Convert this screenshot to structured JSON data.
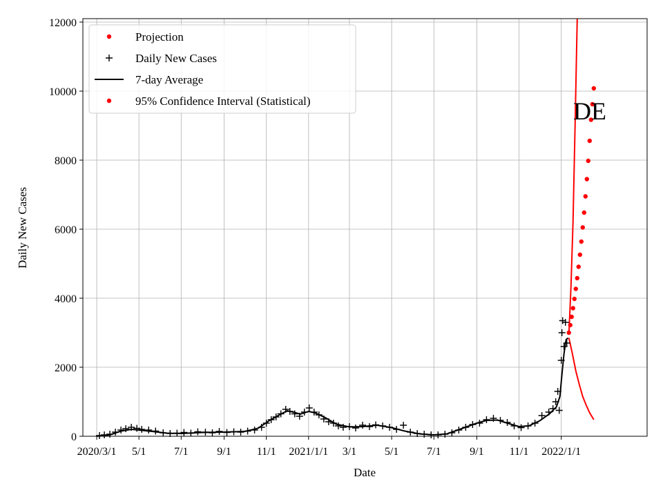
{
  "chart_data": {
    "type": "line",
    "xlabel": "Date",
    "ylabel": "Daily New Cases",
    "annotation": "DE",
    "ylim": [
      0,
      12100
    ],
    "xlim": [
      "2020-02-10",
      "2022-05-05"
    ],
    "grid": true,
    "legend_position": "top-left",
    "x_ticks": [
      {
        "date": "2020-03-01",
        "label": "2020/3/1"
      },
      {
        "date": "2020-05-01",
        "label": "5/1"
      },
      {
        "date": "2020-07-01",
        "label": "7/1"
      },
      {
        "date": "2020-09-01",
        "label": "9/1"
      },
      {
        "date": "2020-11-01",
        "label": "11/1"
      },
      {
        "date": "2021-01-01",
        "label": "2021/1/1"
      },
      {
        "date": "2021-03-01",
        "label": "3/1"
      },
      {
        "date": "2021-05-01",
        "label": "5/1"
      },
      {
        "date": "2021-07-01",
        "label": "7/1"
      },
      {
        "date": "2021-09-01",
        "label": "9/1"
      },
      {
        "date": "2021-11-01",
        "label": "11/1"
      },
      {
        "date": "2022-01-01",
        "label": "2022/1/1"
      }
    ],
    "y_ticks": [
      0,
      2000,
      4000,
      6000,
      8000,
      10000,
      12000
    ],
    "legend": [
      {
        "label": "Projection",
        "marker": "dot",
        "color": "#ff0000"
      },
      {
        "label": "Daily New Cases",
        "marker": "plus",
        "color": "#000000"
      },
      {
        "label": "7-day Average",
        "marker": "line",
        "color": "#000000"
      },
      {
        "label": "95% Confidence Interval (Statistical)",
        "marker": "dot",
        "color": "#ff0000"
      }
    ],
    "series": [
      {
        "name": "7-day Average",
        "style": "line",
        "color": "#000000",
        "points": [
          [
            "2020-03-01",
            0
          ],
          [
            "2020-03-20",
            40
          ],
          [
            "2020-04-05",
            150
          ],
          [
            "2020-04-20",
            200
          ],
          [
            "2020-05-01",
            180
          ],
          [
            "2020-05-20",
            140
          ],
          [
            "2020-06-10",
            90
          ],
          [
            "2020-07-01",
            80
          ],
          [
            "2020-08-01",
            110
          ],
          [
            "2020-09-01",
            120
          ],
          [
            "2020-10-01",
            140
          ],
          [
            "2020-10-20",
            230
          ],
          [
            "2020-11-05",
            450
          ],
          [
            "2020-11-20",
            620
          ],
          [
            "2020-12-01",
            740
          ],
          [
            "2020-12-10",
            700
          ],
          [
            "2020-12-20",
            640
          ],
          [
            "2021-01-01",
            720
          ],
          [
            "2021-01-10",
            680
          ],
          [
            "2021-01-25",
            540
          ],
          [
            "2021-02-10",
            350
          ],
          [
            "2021-03-01",
            270
          ],
          [
            "2021-03-20",
            280
          ],
          [
            "2021-04-10",
            320
          ],
          [
            "2021-05-01",
            250
          ],
          [
            "2021-05-20",
            150
          ],
          [
            "2021-06-10",
            70
          ],
          [
            "2021-07-01",
            40
          ],
          [
            "2021-07-20",
            70
          ],
          [
            "2021-08-10",
            220
          ],
          [
            "2021-09-01",
            380
          ],
          [
            "2021-09-15",
            460
          ],
          [
            "2021-10-01",
            470
          ],
          [
            "2021-10-15",
            380
          ],
          [
            "2021-11-01",
            280
          ],
          [
            "2021-11-15",
            300
          ],
          [
            "2021-12-01",
            450
          ],
          [
            "2021-12-15",
            650
          ],
          [
            "2021-12-25",
            850
          ],
          [
            "2021-12-30",
            1150
          ],
          [
            "2022-01-02",
            1800
          ],
          [
            "2022-01-05",
            2400
          ],
          [
            "2022-01-08",
            2800
          ],
          [
            "2022-01-11",
            2850
          ]
        ]
      },
      {
        "name": "Daily New Cases",
        "style": "plus",
        "color": "#000000",
        "points": [
          [
            "2020-03-05",
            20
          ],
          [
            "2020-03-12",
            40
          ],
          [
            "2020-03-20",
            60
          ],
          [
            "2020-03-28",
            120
          ],
          [
            "2020-04-05",
            180
          ],
          [
            "2020-04-12",
            220
          ],
          [
            "2020-04-20",
            260
          ],
          [
            "2020-04-28",
            230
          ],
          [
            "2020-05-05",
            200
          ],
          [
            "2020-05-15",
            180
          ],
          [
            "2020-05-25",
            150
          ],
          [
            "2020-06-05",
            100
          ],
          [
            "2020-06-15",
            80
          ],
          [
            "2020-06-25",
            90
          ],
          [
            "2020-07-05",
            110
          ],
          [
            "2020-07-15",
            90
          ],
          [
            "2020-07-25",
            130
          ],
          [
            "2020-08-05",
            120
          ],
          [
            "2020-08-15",
            100
          ],
          [
            "2020-08-25",
            140
          ],
          [
            "2020-09-05",
            110
          ],
          [
            "2020-09-15",
            130
          ],
          [
            "2020-09-25",
            120
          ],
          [
            "2020-10-05",
            150
          ],
          [
            "2020-10-15",
            180
          ],
          [
            "2020-10-25",
            260
          ],
          [
            "2020-11-01",
            380
          ],
          [
            "2020-11-08",
            480
          ],
          [
            "2020-11-15",
            560
          ],
          [
            "2020-11-22",
            650
          ],
          [
            "2020-11-29",
            780
          ],
          [
            "2020-12-05",
            720
          ],
          [
            "2020-12-12",
            650
          ],
          [
            "2020-12-19",
            580
          ],
          [
            "2020-12-26",
            700
          ],
          [
            "2021-01-02",
            820
          ],
          [
            "2021-01-09",
            700
          ],
          [
            "2021-01-16",
            620
          ],
          [
            "2021-01-23",
            500
          ],
          [
            "2021-01-30",
            420
          ],
          [
            "2021-02-06",
            380
          ],
          [
            "2021-02-13",
            300
          ],
          [
            "2021-02-20",
            260
          ],
          [
            "2021-03-01",
            280
          ],
          [
            "2021-03-10",
            240
          ],
          [
            "2021-03-20",
            320
          ],
          [
            "2021-03-30",
            280
          ],
          [
            "2021-04-08",
            330
          ],
          [
            "2021-04-18",
            300
          ],
          [
            "2021-04-28",
            260
          ],
          [
            "2021-05-08",
            200
          ],
          [
            "2021-05-18",
            320
          ],
          [
            "2021-05-28",
            120
          ],
          [
            "2021-06-07",
            80
          ],
          [
            "2021-06-17",
            60
          ],
          [
            "2021-06-27",
            40
          ],
          [
            "2021-07-07",
            40
          ],
          [
            "2021-07-17",
            60
          ],
          [
            "2021-07-27",
            100
          ],
          [
            "2021-08-06",
            180
          ],
          [
            "2021-08-16",
            260
          ],
          [
            "2021-08-26",
            340
          ],
          [
            "2021-09-05",
            380
          ],
          [
            "2021-09-15",
            480
          ],
          [
            "2021-09-25",
            520
          ],
          [
            "2021-10-05",
            460
          ],
          [
            "2021-10-15",
            400
          ],
          [
            "2021-10-25",
            300
          ],
          [
            "2021-11-04",
            250
          ],
          [
            "2021-11-14",
            300
          ],
          [
            "2021-11-24",
            380
          ],
          [
            "2021-12-04",
            600
          ],
          [
            "2021-12-14",
            700
          ],
          [
            "2021-12-20",
            800
          ],
          [
            "2021-12-24",
            1000
          ],
          [
            "2021-12-27",
            1300
          ],
          [
            "2021-12-29",
            750
          ],
          [
            "2022-01-01",
            2200
          ],
          [
            "2022-01-02",
            3000
          ],
          [
            "2022-01-03",
            3350
          ],
          [
            "2022-01-05",
            2600
          ],
          [
            "2022-01-07",
            3300
          ],
          [
            "2022-01-09",
            2700
          ]
        ]
      },
      {
        "name": "Projection",
        "style": "dot",
        "color": "#ff0000",
        "points": [
          [
            "2022-01-12",
            3000
          ],
          [
            "2022-01-14",
            3220
          ],
          [
            "2022-01-16",
            3460
          ],
          [
            "2022-01-18",
            3710
          ],
          [
            "2022-01-20",
            3980
          ],
          [
            "2022-01-22",
            4270
          ],
          [
            "2022-01-24",
            4580
          ],
          [
            "2022-01-26",
            4910
          ],
          [
            "2022-01-28",
            5260
          ],
          [
            "2022-01-30",
            5640
          ],
          [
            "2022-02-01",
            6050
          ],
          [
            "2022-02-03",
            6480
          ],
          [
            "2022-02-05",
            6950
          ],
          [
            "2022-02-07",
            7450
          ],
          [
            "2022-02-09",
            7980
          ],
          [
            "2022-02-11",
            8560
          ],
          [
            "2022-02-13",
            9170
          ],
          [
            "2022-02-15",
            9620
          ],
          [
            "2022-02-17",
            10080
          ]
        ]
      },
      {
        "name": "95% Confidence Interval (Statistical)",
        "style": "line",
        "color": "#ff0000",
        "upper": [
          [
            "2022-01-12",
            2950
          ],
          [
            "2022-01-15",
            4300
          ],
          [
            "2022-01-18",
            6200
          ],
          [
            "2022-01-21",
            9000
          ],
          [
            "2022-01-24",
            12100
          ]
        ],
        "lower": [
          [
            "2022-01-12",
            2850
          ],
          [
            "2022-01-17",
            2400
          ],
          [
            "2022-01-22",
            1900
          ],
          [
            "2022-01-27",
            1500
          ],
          [
            "2022-02-01",
            1150
          ],
          [
            "2022-02-06",
            900
          ],
          [
            "2022-02-11",
            680
          ],
          [
            "2022-02-17",
            480
          ]
        ]
      }
    ]
  }
}
